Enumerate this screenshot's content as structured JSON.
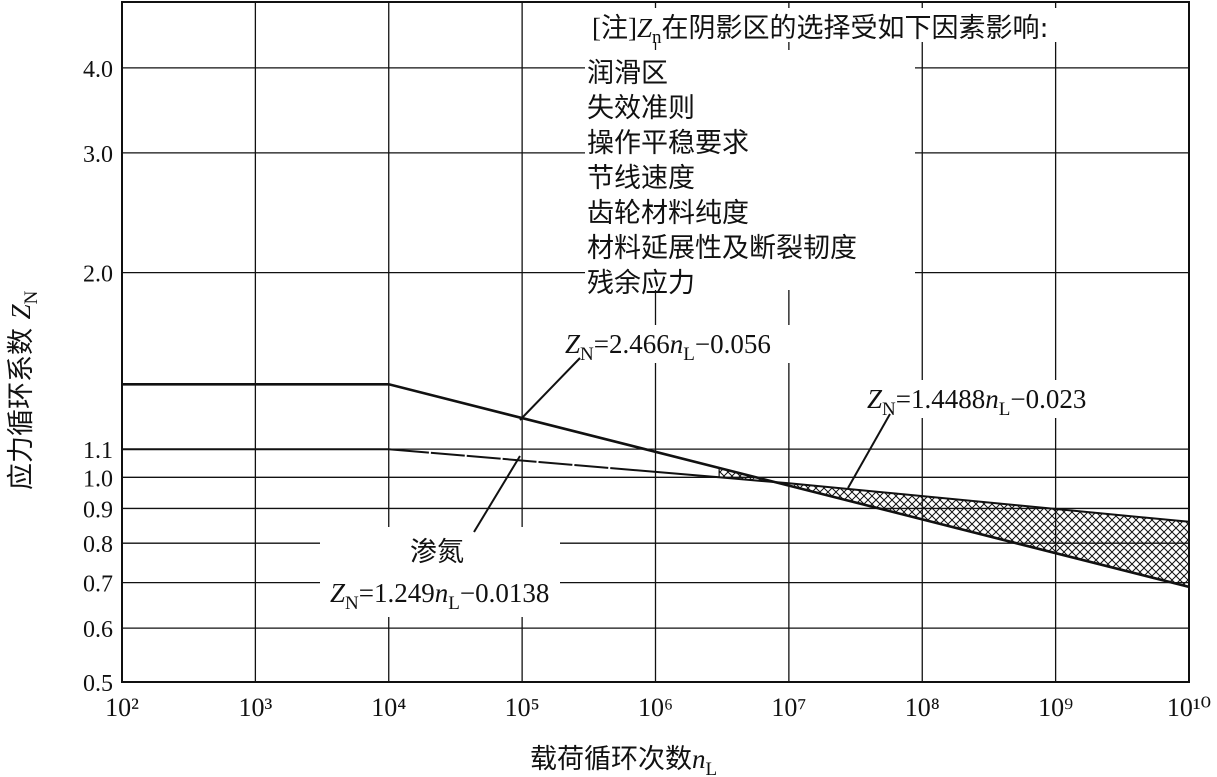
{
  "chart_data": {
    "type": "line",
    "title": "",
    "xlabel": "载荷循环次数n_L",
    "ylabel": "应力循环系数 Z_N",
    "x_scale": "log",
    "y_scale": "log",
    "xlim": [
      100,
      10000000000
    ],
    "ylim": [
      0.5,
      5.0
    ],
    "grid": true,
    "x_ticks": [
      {
        "value": 100,
        "label": "10²"
      },
      {
        "value": 1000,
        "label": "10³"
      },
      {
        "value": 10000,
        "label": "10⁴"
      },
      {
        "value": 100000,
        "label": "10⁵"
      },
      {
        "value": 1000000,
        "label": "10⁶"
      },
      {
        "value": 10000000,
        "label": "10⁷"
      },
      {
        "value": 100000000,
        "label": "10⁸"
      },
      {
        "value": 1000000000,
        "label": "10⁹"
      },
      {
        "value": 10000000000,
        "label": "10¹⁰"
      }
    ],
    "y_ticks": [
      {
        "value": 0.5,
        "label": "0.5"
      },
      {
        "value": 0.6,
        "label": "0.6"
      },
      {
        "value": 0.7,
        "label": "0.7"
      },
      {
        "value": 0.8,
        "label": "0.8"
      },
      {
        "value": 0.9,
        "label": "0.9"
      },
      {
        "value": 1.0,
        "label": "1.0"
      },
      {
        "value": 1.1,
        "label": "1.1"
      },
      {
        "value": 2.0,
        "label": "2.0"
      },
      {
        "value": 3.0,
        "label": "3.0"
      },
      {
        "value": 4.0,
        "label": "4.0"
      }
    ],
    "series": [
      {
        "style": "solid",
        "x": [
          100,
          10000,
          10000000000
        ],
        "y": [
          1.37,
          1.37,
          0.69
        ]
      },
      {
        "style": "dashdot",
        "x": [
          100,
          10000,
          3000000,
          10000000,
          10000000000
        ],
        "y": [
          1.1,
          1.1,
          1.0,
          0.98,
          0.86
        ]
      }
    ],
    "shaded_region": {
      "x_from": 3000000,
      "x_to": 10000000000,
      "between": [
        "upper",
        "lower"
      ],
      "pattern": "crosshatch"
    },
    "note": {
      "heading": "[注]Zn在阴影区的选择受如下因素影响:",
      "items": [
        "润滑区",
        "失效准则",
        "操作平稳要求",
        "节线速度",
        "齿轮材料纯度",
        "材料延展性及断裂韧度",
        "残余应力"
      ]
    },
    "annotations": [
      {
        "label": "Z_N=2.466n_L^-0.056",
        "text": "ZN=2.466nL−0.056"
      },
      {
        "label": "Z_N=1.4488n_L^-0.023",
        "text": "ZN=1.4488nL−0.023"
      },
      {
        "label": "渗氮",
        "text": "渗氮"
      },
      {
        "label": "Z_N=1.249n_L^-0.0138",
        "text": "ZN=1.249nL−0.0138"
      }
    ]
  },
  "labels": {
    "xlabel_main": "载荷循环次数",
    "xlabel_var": "n",
    "xlabel_sub": "L",
    "ylabel_main": "应力循环系数 ",
    "ylabel_var": "Z",
    "ylabel_sub": "N",
    "eq1": {
      "z": "Z",
      "zs": "N",
      "mid": "=2.466",
      "n": "n",
      "ns": "L",
      "exp": "−0.056"
    },
    "eq2": {
      "z": "Z",
      "zs": "N",
      "mid": "=1.4488",
      "n": "n",
      "ns": "L",
      "exp": "−0.023"
    },
    "eq3": {
      "z": "Z",
      "zs": "N",
      "mid": "=1.249",
      "n": "n",
      "ns": "L",
      "exp": "−0.0138"
    },
    "nitriding": "渗氮",
    "note_prefix": "[注]",
    "note_z": "Z",
    "note_zsub": "n",
    "note_rest": "在阴影区的选择受如下因素影响:"
  },
  "colors": {
    "ink": "#111111",
    "background": "#ffffff"
  }
}
